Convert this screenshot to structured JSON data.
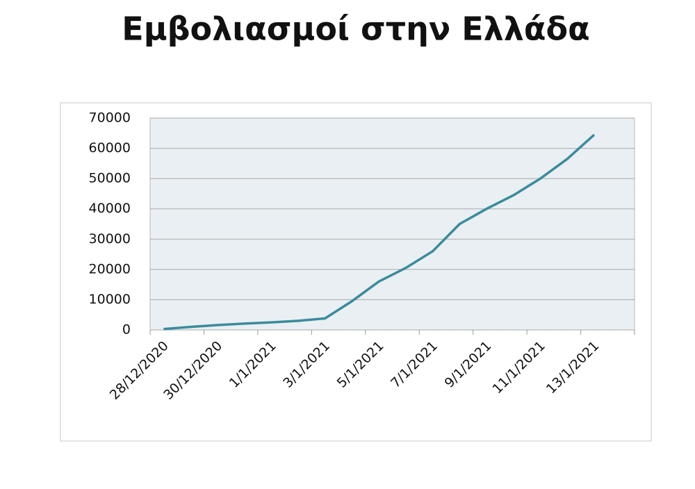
{
  "chart_data": {
    "type": "line",
    "title": "Εμβολιασμοί στην Ελλάδα",
    "categories": [
      "28/12/2020",
      null,
      "30/12/2020",
      null,
      "1/1/2021",
      null,
      "3/1/2021",
      null,
      "5/1/2021",
      null,
      "7/1/2021",
      null,
      "9/1/2021",
      null,
      "11/1/2021",
      null,
      "13/1/2021"
    ],
    "series": [
      {
        "name": "Εμβολιασμοί",
        "color": "#3a8b9b",
        "values": [
          300,
          1000,
          1600,
          2100,
          2500,
          3000,
          3800,
          9500,
          16000,
          20500,
          26000,
          35000,
          40000,
          44500,
          50000,
          56500,
          64500
        ]
      }
    ],
    "ylim": [
      0,
      70000
    ],
    "yticks": [
      0,
      10000,
      20000,
      30000,
      40000,
      50000,
      60000,
      70000
    ],
    "grid": true
  }
}
